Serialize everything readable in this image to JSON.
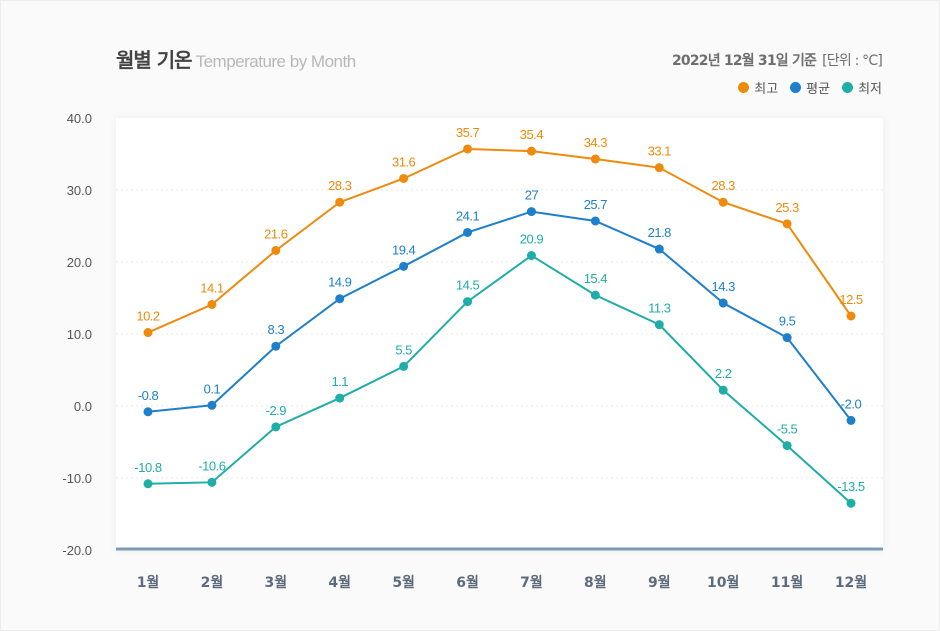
{
  "header": {
    "title": "월별 기온",
    "subtitle": "Temperature by Month",
    "basis_date": "2022년 12월 31일 기준",
    "unit": "[단위 : °C]"
  },
  "legend": [
    {
      "label": "최고",
      "color": "#ee8a0c"
    },
    {
      "label": "평균",
      "color": "#1e7fcb"
    },
    {
      "label": "최저",
      "color": "#1fada8"
    }
  ],
  "chart_data": {
    "type": "line",
    "title": "월별 기온 Temperature by Month",
    "xlabel": "",
    "ylabel": "",
    "categories": [
      "1월",
      "2월",
      "3월",
      "4월",
      "5월",
      "6월",
      "7월",
      "8월",
      "9월",
      "10월",
      "11월",
      "12월"
    ],
    "yticks": [
      "40.0",
      "30.0",
      "20.0",
      "10.0",
      "0.0",
      "-10.0",
      "-20.0"
    ],
    "ylim": [
      -20,
      40
    ],
    "grid": true,
    "legend_position": "top-right",
    "series": [
      {
        "name": "최고",
        "color": "#ee8a0c",
        "values": [
          10.2,
          14.1,
          21.6,
          28.3,
          31.6,
          35.7,
          35.4,
          34.3,
          33.1,
          28.3,
          25.3,
          12.5
        ],
        "labels": [
          "10.2",
          "14.1",
          "21.6",
          "28.3",
          "31.6",
          "35.7",
          "35.4",
          "34.3",
          "33.1",
          "28.3",
          "25.3",
          "12.5"
        ]
      },
      {
        "name": "평균",
        "color": "#1e7fcb",
        "values": [
          -0.8,
          0.1,
          8.3,
          14.9,
          19.4,
          24.1,
          27,
          25.7,
          21.8,
          14.3,
          9.5,
          -2.0
        ],
        "labels": [
          "-0.8",
          "0.1",
          "8.3",
          "14.9",
          "19.4",
          "24.1",
          "27",
          "25.7",
          "21.8",
          "14.3",
          "9.5",
          "-2.0"
        ]
      },
      {
        "name": "최저",
        "color": "#1fada8",
        "values": [
          -10.8,
          -10.6,
          -2.9,
          1.1,
          5.5,
          14.5,
          20.9,
          15.4,
          11.3,
          2.2,
          -5.5,
          -13.5
        ],
        "labels": [
          "-10.8",
          "-10.6",
          "-2.9",
          "1.1",
          "5.5",
          "14.5",
          "20.9",
          "15.4",
          "11.3",
          "2.2",
          "-5.5",
          "-13.5"
        ]
      }
    ]
  }
}
